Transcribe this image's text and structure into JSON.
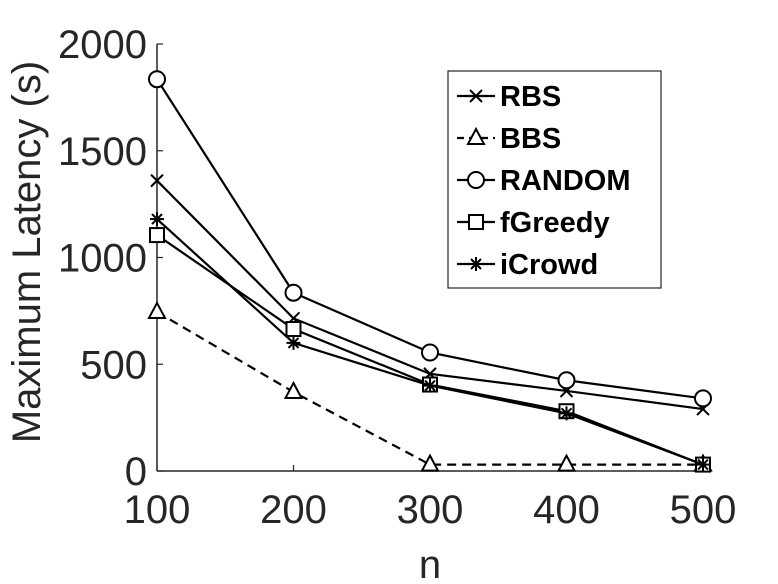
{
  "chart_data": {
    "type": "line",
    "title": "",
    "xlabel": "n",
    "ylabel": "Maximum Latency (s)",
    "x": [
      100,
      200,
      300,
      400,
      500
    ],
    "xlim": [
      100,
      500
    ],
    "ylim": [
      0,
      2000
    ],
    "x_ticks": [
      "100",
      "200",
      "300",
      "400",
      "500"
    ],
    "y_ticks": [
      "0",
      "500",
      "1000",
      "1500",
      "2000"
    ],
    "grid": false,
    "legend_position": "top-right",
    "series": [
      {
        "name": "RBS",
        "marker": "x",
        "line": "solid",
        "color": "#000000",
        "values": [
          1360,
          715,
          455,
          375,
          290
        ]
      },
      {
        "name": "BBS",
        "marker": "triangle",
        "line": "dashed",
        "color": "#000000",
        "values": [
          745,
          370,
          30,
          30,
          30
        ]
      },
      {
        "name": "RANDOM",
        "marker": "circle",
        "line": "solid",
        "color": "#000000",
        "values": [
          1835,
          835,
          555,
          425,
          340
        ]
      },
      {
        "name": "fGreedy",
        "marker": "square",
        "line": "solid",
        "color": "#000000",
        "values": [
          1105,
          665,
          405,
          280,
          30
        ]
      },
      {
        "name": "iCrowd",
        "marker": "asterisk",
        "line": "solid",
        "color": "#000000",
        "values": [
          1180,
          600,
          400,
          270,
          30
        ]
      }
    ]
  }
}
